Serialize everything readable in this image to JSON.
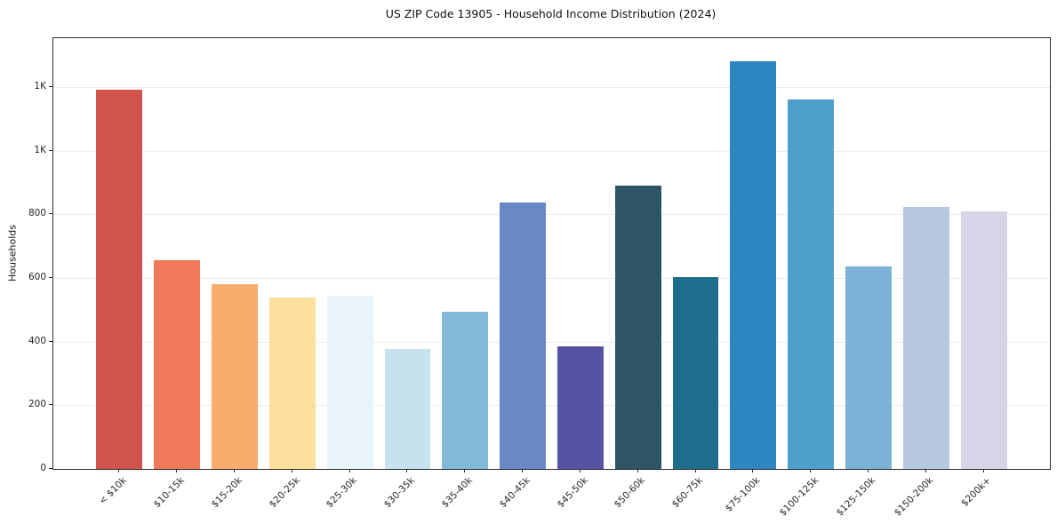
{
  "chart_data": {
    "type": "bar",
    "title": "US ZIP Code 13905 - Household Income Distribution (2024)",
    "xlabel": "",
    "ylabel": "Households",
    "categories": [
      "< $10k",
      "$10-15k",
      "$15-20k",
      "$20-25k",
      "$25-30k",
      "$30-35k",
      "$35-40k",
      "$40-45k",
      "$45-50k",
      "$50-60k",
      "$60-75k",
      "$75-100k",
      "$100-125k",
      "$125-150k",
      "$150-200k",
      "$200k+"
    ],
    "values": [
      1190,
      655,
      580,
      538,
      545,
      377,
      494,
      837,
      385,
      890,
      603,
      1280,
      1160,
      636,
      823,
      809
    ],
    "bar_colors": [
      "#d0534e",
      "#f0795c",
      "#f8ad6e",
      "#fbdf9c",
      "#e8f4f9",
      "#c5e2ee",
      "#82b9d6",
      "#6889c4",
      "#5752a3",
      "#2e5566",
      "#1f6d8c",
      "#2d86c0",
      "#4e9fca",
      "#7cb2d5",
      "#b5c8e0",
      "#d6d5e7"
    ],
    "ylim": [
      0,
      1353
    ],
    "yticks": {
      "values": [
        0,
        200,
        400,
        600,
        800,
        1000,
        1200
      ],
      "labels": [
        "0",
        "200",
        "400",
        "600",
        "800",
        "1K",
        "1K"
      ]
    },
    "grid": "horizontal",
    "legend": "none"
  },
  "colors": {
    "background": "#ffffff",
    "grid": "#ececf0",
    "axis": "#2b2b2b",
    "text": "#262626"
  }
}
